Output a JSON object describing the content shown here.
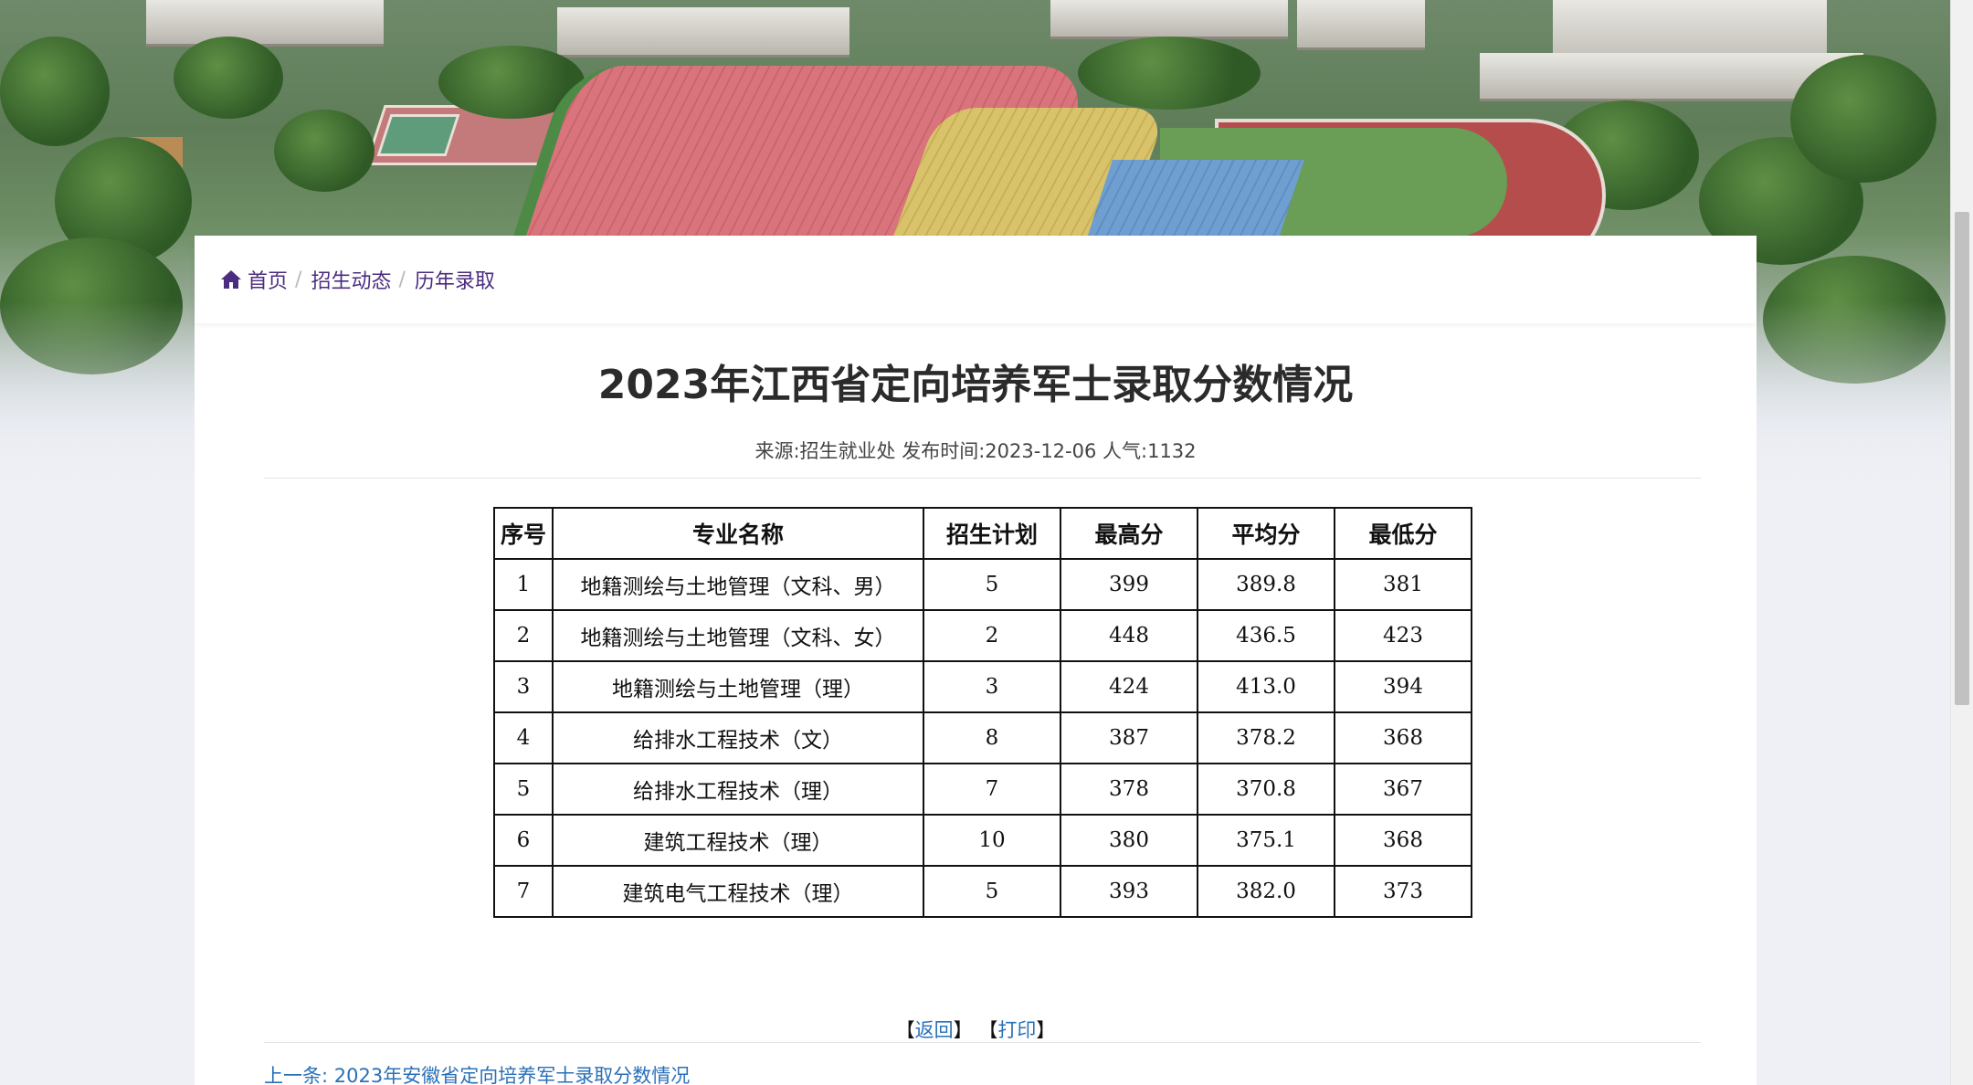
{
  "breadcrumb": {
    "home": "首页",
    "items": [
      "招生动态",
      "历年录取"
    ],
    "separator": "/"
  },
  "article": {
    "title": "2023年江西省定向培养军士录取分数情况",
    "meta": "来源:招生就业处 发布时间:2023-12-06 人气:1132"
  },
  "table": {
    "headers": [
      "序号",
      "专业名称",
      "招生计划",
      "最高分",
      "平均分",
      "最低分"
    ],
    "rows": [
      [
        "1",
        "地籍测绘与土地管理（文科、男）",
        "5",
        "399",
        "389.8",
        "381"
      ],
      [
        "2",
        "地籍测绘与土地管理（文科、女）",
        "2",
        "448",
        "436.5",
        "423"
      ],
      [
        "3",
        "地籍测绘与土地管理（理）",
        "3",
        "424",
        "413.0",
        "394"
      ],
      [
        "4",
        "给排水工程技术（文）",
        "8",
        "387",
        "378.2",
        "368"
      ],
      [
        "5",
        "给排水工程技术（理）",
        "7",
        "378",
        "370.8",
        "367"
      ],
      [
        "6",
        "建筑工程技术（理）",
        "10",
        "380",
        "375.1",
        "368"
      ],
      [
        "7",
        "建筑电气工程技术（理）",
        "5",
        "393",
        "382.0",
        "373"
      ]
    ]
  },
  "actions": {
    "back": "返回",
    "print": "打印",
    "open_bracket": "【",
    "close_bracket": "】"
  },
  "prev_article": "上一条: 2023年安徽省定向培养军士录取分数情况",
  "colors": {
    "breadcrumb_text": "#4b2d7f",
    "link": "#2a70b8",
    "title": "#2b2b2b"
  }
}
